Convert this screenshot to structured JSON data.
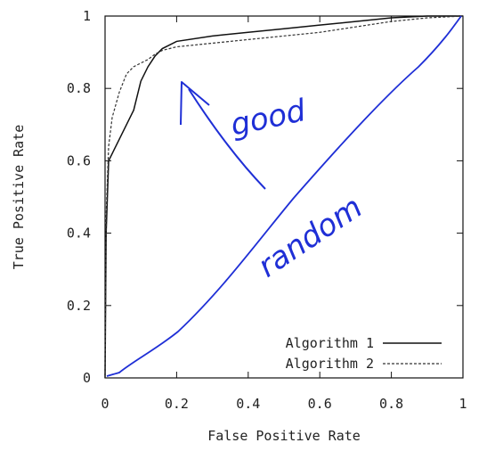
{
  "colors": {
    "axis": "#111111",
    "algorithm1": "#111111",
    "algorithm2": "#333333",
    "annotation": "#1f2fd6"
  },
  "chart_data": {
    "type": "line",
    "title": "",
    "xlabel": "False Positive Rate",
    "ylabel": "True Positive Rate",
    "xlim": [
      0,
      1
    ],
    "ylim": [
      0,
      1
    ],
    "x_ticks": [
      0,
      0.2,
      0.4,
      0.6,
      0.8,
      1
    ],
    "x_tick_labels": [
      "0",
      "0.2",
      "0.4",
      "0.6",
      "0.8",
      "1"
    ],
    "y_ticks": [
      0,
      0.2,
      0.4,
      0.6,
      0.8,
      1
    ],
    "y_tick_labels": [
      "0",
      "0.2",
      "0.4",
      "0.6",
      "0.8",
      "1"
    ],
    "grid": false,
    "legend": {
      "placement": "bottom-right",
      "entries": [
        {
          "label": "Algorithm 1",
          "style": "solid"
        },
        {
          "label": "Algorithm 2",
          "style": "dashed"
        }
      ]
    },
    "series": [
      {
        "name": "Algorithm 1",
        "style": "solid",
        "points": [
          [
            0,
            0
          ],
          [
            0.003,
            0.4
          ],
          [
            0.01,
            0.6
          ],
          [
            0.02,
            0.62
          ],
          [
            0.04,
            0.66
          ],
          [
            0.06,
            0.7
          ],
          [
            0.08,
            0.74
          ],
          [
            0.1,
            0.82
          ],
          [
            0.12,
            0.86
          ],
          [
            0.14,
            0.89
          ],
          [
            0.16,
            0.91
          ],
          [
            0.2,
            0.93
          ],
          [
            0.3,
            0.945
          ],
          [
            0.4,
            0.955
          ],
          [
            0.5,
            0.965
          ],
          [
            0.6,
            0.975
          ],
          [
            0.7,
            0.985
          ],
          [
            0.8,
            0.995
          ],
          [
            0.9,
            1
          ],
          [
            1,
            1
          ]
        ]
      },
      {
        "name": "Algorithm 2",
        "style": "dashed",
        "points": [
          [
            0,
            0
          ],
          [
            0.003,
            0.45
          ],
          [
            0.01,
            0.64
          ],
          [
            0.02,
            0.72
          ],
          [
            0.04,
            0.79
          ],
          [
            0.06,
            0.84
          ],
          [
            0.08,
            0.86
          ],
          [
            0.1,
            0.87
          ],
          [
            0.12,
            0.88
          ],
          [
            0.14,
            0.895
          ],
          [
            0.16,
            0.905
          ],
          [
            0.2,
            0.915
          ],
          [
            0.3,
            0.925
          ],
          [
            0.4,
            0.935
          ],
          [
            0.5,
            0.945
          ],
          [
            0.6,
            0.955
          ],
          [
            0.7,
            0.97
          ],
          [
            0.8,
            0.985
          ],
          [
            0.9,
            0.995
          ],
          [
            1,
            1
          ]
        ]
      }
    ]
  },
  "annotations": {
    "good_text": "good",
    "random_text": "random"
  }
}
